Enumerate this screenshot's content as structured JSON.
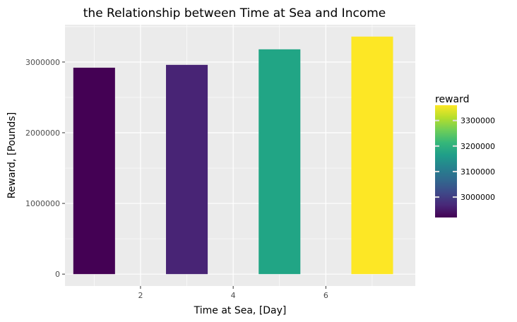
{
  "chart_data": {
    "type": "bar",
    "title": "the Relationship between Time at Sea and Income",
    "xlabel": "Time at Sea, [Day]",
    "ylabel": "Reward, [Pounds]",
    "x": [
      1,
      3,
      5,
      7
    ],
    "values": [
      2920000,
      2960000,
      3180000,
      3360000
    ],
    "bar_width": 0.9,
    "xlim": [
      0.37,
      7.93
    ],
    "ylim": [
      -168000,
      3528000
    ],
    "x_ticks": [
      2,
      4,
      6
    ],
    "x_tick_labels": [
      "2",
      "4",
      "6"
    ],
    "y_ticks": [
      0,
      1000000,
      2000000,
      3000000
    ],
    "y_tick_labels": [
      "0",
      "1000000",
      "2000000",
      "3000000"
    ],
    "grid": true,
    "panel_background": "#ebebeb",
    "legend": {
      "title": "reward",
      "position": "right",
      "ticks": [
        3000000,
        3100000,
        3200000,
        3300000
      ],
      "tick_labels": [
        "3000000",
        "3100000",
        "3200000",
        "3300000"
      ],
      "range": [
        2920000,
        3360000
      ]
    },
    "colormap": [
      "#440154",
      "#482878",
      "#3e4989",
      "#31688e",
      "#26828e",
      "#1f9e89",
      "#35b779",
      "#6ece58",
      "#b5de2b",
      "#fde725"
    ],
    "bar_colors": [
      "#440154",
      "#482475",
      "#21a585",
      "#fde725"
    ]
  }
}
